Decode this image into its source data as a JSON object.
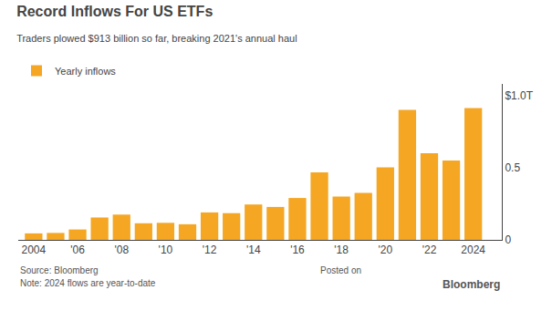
{
  "chart_data": {
    "type": "bar",
    "title": "Record Inflows For US ETFs",
    "subtitle": "Traders plowed $913 billion so far, breaking 2021's annual haul",
    "x": [
      2004,
      2005,
      2006,
      2007,
      2008,
      2009,
      2010,
      2011,
      2012,
      2013,
      2014,
      2015,
      2016,
      2017,
      2018,
      2019,
      2020,
      2021,
      2022,
      2023,
      2024
    ],
    "series": [
      {
        "name": "Yearly inflows",
        "color": "#F5A623",
        "values": [
          0.045,
          0.048,
          0.072,
          0.155,
          0.175,
          0.115,
          0.118,
          0.108,
          0.19,
          0.185,
          0.245,
          0.228,
          0.29,
          0.468,
          0.3,
          0.325,
          0.502,
          0.9,
          0.6,
          0.55,
          0.913
        ]
      }
    ],
    "xlim": [
      2003.3,
      2025.3
    ],
    "xticks": [
      2004,
      {
        "value": 2006,
        "label": "'06"
      },
      {
        "value": 2008,
        "label": "'08"
      },
      {
        "value": 2010,
        "label": "'10"
      },
      {
        "value": 2012,
        "label": "'12"
      },
      {
        "value": 2014,
        "label": "'14"
      },
      {
        "value": 2016,
        "label": "'16"
      },
      {
        "value": 2018,
        "label": "'18"
      },
      {
        "value": 2020,
        "label": "'20"
      },
      {
        "value": 2022,
        "label": "'22"
      },
      2024
    ],
    "ylim": [
      0,
      1.08
    ],
    "yticks": [
      0,
      0.5,
      {
        "value": 1.0,
        "label": "$1.0T"
      }
    ],
    "grid": false,
    "legend": "top left",
    "annotations": [
      "Source: Bloomberg",
      "Note: 2024 flows are year-to-date",
      "Posted on",
      "Bloomberg"
    ]
  }
}
